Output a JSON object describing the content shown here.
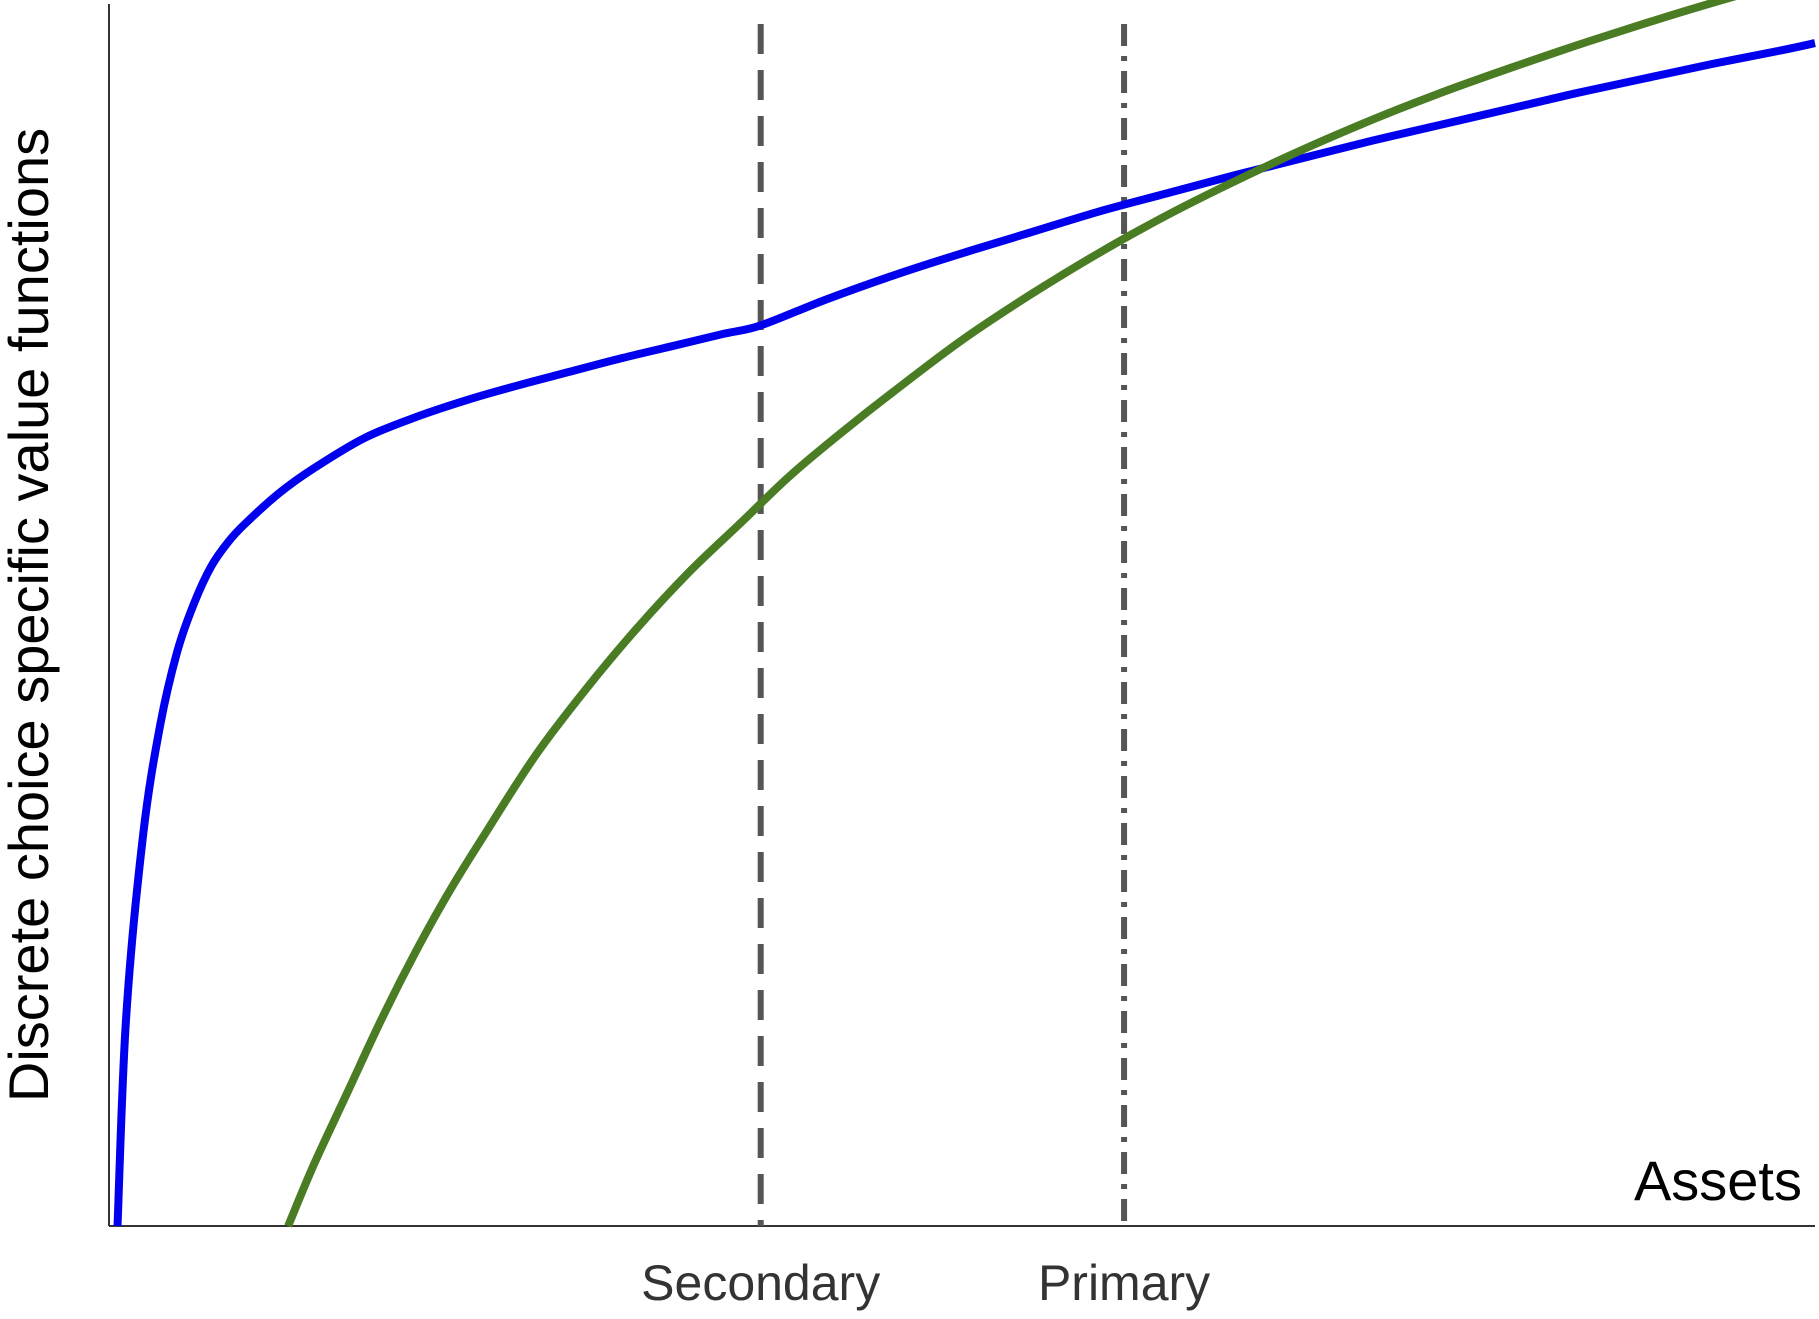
{
  "chart_data": {
    "type": "line",
    "xlabel": "Assets",
    "ylabel": "Discrete choice specific value functions",
    "xlim": [
      0,
      100
    ],
    "ylim": [
      0,
      100
    ],
    "grid": false,
    "legend": "none",
    "series": [
      {
        "color": "#0000ee",
        "x": [
          0.5,
          1,
          2,
          3,
          4,
          5,
          6,
          7,
          8,
          10,
          12,
          15,
          18,
          21,
          24,
          27,
          30,
          33,
          36,
          38.2,
          42,
          46,
          50,
          54,
          58,
          62,
          66,
          70,
          74,
          78,
          82,
          86,
          90,
          94,
          98,
          100
        ],
        "values": [
          0,
          17,
          32,
          41,
          47,
          51,
          54,
          56,
          57.5,
          60,
          62,
          64.5,
          66.2,
          67.6,
          68.8,
          69.9,
          71,
          72,
          73,
          73.7,
          75.8,
          77.8,
          79.6,
          81.3,
          83,
          84.5,
          86,
          87.4,
          88.8,
          90.1,
          91.4,
          92.7,
          93.9,
          95.1,
          96.2,
          96.8
        ]
      },
      {
        "color": "#4a7c23",
        "x": [
          10.5,
          12,
          14,
          16,
          18,
          20,
          22,
          25,
          28,
          31,
          34,
          37,
          40,
          43,
          46,
          50,
          54,
          58,
          62,
          66,
          70,
          74,
          78,
          82,
          86,
          90,
          94,
          98,
          100
        ],
        "values": [
          0,
          5,
          11,
          17,
          22.5,
          27.5,
          32,
          38.5,
          44,
          49,
          53.5,
          57.5,
          61.5,
          65,
          68.3,
          72.5,
          76.2,
          79.6,
          82.7,
          85.5,
          88.1,
          90.5,
          92.7,
          94.7,
          96.6,
          98.4,
          100.1,
          101.7,
          102.5
        ]
      }
    ],
    "vlines": [
      {
        "x": 38.2,
        "label": "Secondary",
        "style": "dashed",
        "color": "#555555"
      },
      {
        "x": 59.5,
        "label": "Primary",
        "style": "dashdot",
        "color": "#555555"
      }
    ]
  }
}
